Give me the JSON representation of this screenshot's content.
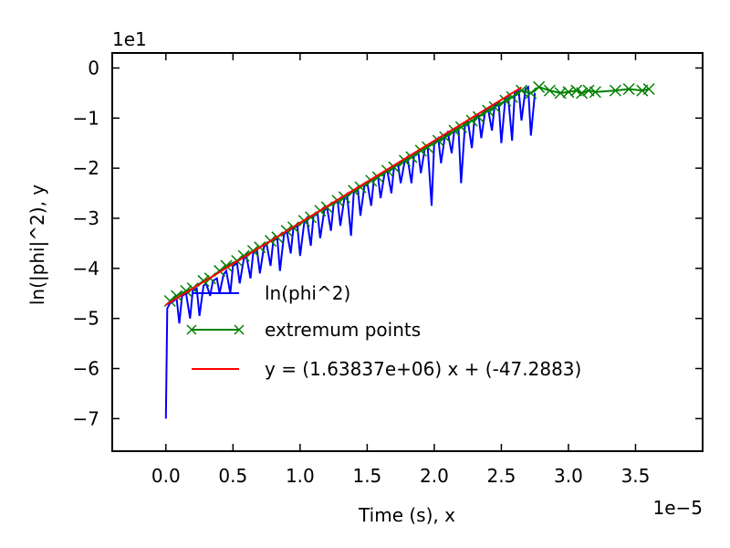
{
  "chart_data": {
    "type": "line",
    "xlabel": "Time (s), x",
    "ylabel": "ln(|phi|^2), y",
    "x_offset_label": "1e−5",
    "y_offset_label": "1e1",
    "xlim": [
      -0.4,
      4.0
    ],
    "ylim": [
      -7.65,
      0.3
    ],
    "x_ticks": [
      0.0,
      0.5,
      1.0,
      1.5,
      2.0,
      2.5,
      3.0,
      3.5
    ],
    "x_tick_labels": [
      "0.0",
      "0.5",
      "1.0",
      "1.5",
      "2.0",
      "2.5",
      "3.0",
      "3.5"
    ],
    "y_ticks": [
      0,
      -1,
      -2,
      -3,
      -4,
      -5,
      -6,
      -7
    ],
    "y_tick_labels": [
      "0",
      "−1",
      "−2",
      "−3",
      "−4",
      "−5",
      "−6",
      "−7"
    ],
    "grid": false,
    "legend_position": "lower-right",
    "series": [
      {
        "name": "ln(phi^2)",
        "color": "#0000ff",
        "marker": "none",
        "x": [
          0.0,
          0.01,
          0.03,
          0.06,
          0.08,
          0.1,
          0.12,
          0.15,
          0.18,
          0.2,
          0.23,
          0.25,
          0.28,
          0.3,
          0.33,
          0.35,
          0.38,
          0.4,
          0.43,
          0.45,
          0.48,
          0.5,
          0.53,
          0.55,
          0.58,
          0.6,
          0.63,
          0.65,
          0.68,
          0.7,
          0.73,
          0.75,
          0.78,
          0.8,
          0.83,
          0.85,
          0.88,
          0.9,
          0.93,
          0.95,
          0.98,
          1.0,
          1.03,
          1.05,
          1.08,
          1.1,
          1.13,
          1.15,
          1.18,
          1.2,
          1.23,
          1.25,
          1.28,
          1.3,
          1.33,
          1.35,
          1.38,
          1.4,
          1.43,
          1.45,
          1.48,
          1.5,
          1.53,
          1.55,
          1.58,
          1.6,
          1.63,
          1.65,
          1.68,
          1.7,
          1.73,
          1.75,
          1.78,
          1.8,
          1.83,
          1.85,
          1.88,
          1.9,
          1.93,
          1.95,
          1.98,
          2.0,
          2.03,
          2.05,
          2.08,
          2.1,
          2.13,
          2.15,
          2.18,
          2.2,
          2.23,
          2.25,
          2.28,
          2.3,
          2.33,
          2.35,
          2.38,
          2.4,
          2.43,
          2.45,
          2.48,
          2.5,
          2.53,
          2.55,
          2.58,
          2.6,
          2.63,
          2.65,
          2.68,
          2.7,
          2.72,
          2.75
        ],
        "y": [
          -7.0,
          -4.8,
          -4.7,
          -4.65,
          -4.6,
          -5.1,
          -4.55,
          -4.5,
          -5.0,
          -4.45,
          -4.4,
          -4.95,
          -4.35,
          -4.3,
          -4.55,
          -4.25,
          -4.2,
          -4.5,
          -4.12,
          -4.05,
          -4.5,
          -3.95,
          -3.9,
          -4.3,
          -3.82,
          -3.75,
          -4.2,
          -3.7,
          -3.65,
          -4.1,
          -3.58,
          -3.5,
          -3.95,
          -3.45,
          -3.4,
          -4.05,
          -3.33,
          -3.25,
          -3.7,
          -3.2,
          -3.15,
          -3.75,
          -3.1,
          -3.0,
          -3.55,
          -2.95,
          -2.9,
          -3.4,
          -2.85,
          -2.78,
          -3.25,
          -2.72,
          -2.65,
          -3.15,
          -2.6,
          -2.52,
          -3.35,
          -2.48,
          -2.4,
          -2.95,
          -2.35,
          -2.28,
          -2.75,
          -2.22,
          -2.15,
          -2.6,
          -2.1,
          -2.05,
          -2.5,
          -1.98,
          -1.92,
          -2.3,
          -1.85,
          -1.78,
          -2.3,
          -1.72,
          -1.65,
          -2.1,
          -1.6,
          -1.55,
          -2.75,
          -1.48,
          -1.4,
          -1.9,
          -1.35,
          -1.28,
          -1.7,
          -1.22,
          -1.18,
          -2.3,
          -1.1,
          -1.05,
          -1.6,
          -1.0,
          -0.92,
          -1.4,
          -0.85,
          -0.8,
          -1.25,
          -0.74,
          -0.68,
          -1.5,
          -0.6,
          -0.55,
          -1.45,
          -0.5,
          -0.45,
          -1.05,
          -0.42,
          -0.38,
          -1.35,
          -0.5
        ]
      },
      {
        "name": "extremum points",
        "color": "#008000",
        "marker": "x",
        "x": [
          0.03,
          0.08,
          0.15,
          0.2,
          0.28,
          0.33,
          0.4,
          0.45,
          0.53,
          0.58,
          0.65,
          0.7,
          0.78,
          0.83,
          0.9,
          0.95,
          1.03,
          1.08,
          1.15,
          1.2,
          1.28,
          1.33,
          1.4,
          1.45,
          1.53,
          1.58,
          1.65,
          1.7,
          1.78,
          1.83,
          1.9,
          1.95,
          2.03,
          2.08,
          2.15,
          2.2,
          2.28,
          2.33,
          2.4,
          2.45,
          2.53,
          2.58,
          2.65,
          2.72,
          2.78,
          2.86,
          2.94,
          3.0,
          3.06,
          3.1,
          3.15,
          3.2,
          3.35,
          3.45,
          3.55,
          3.6
        ],
        "y": [
          -4.65,
          -4.55,
          -4.45,
          -4.4,
          -4.25,
          -4.2,
          -4.05,
          -3.95,
          -3.85,
          -3.75,
          -3.65,
          -3.58,
          -3.45,
          -3.38,
          -3.25,
          -3.18,
          -3.05,
          -2.98,
          -2.85,
          -2.78,
          -2.65,
          -2.58,
          -2.45,
          -2.38,
          -2.25,
          -2.18,
          -2.05,
          -1.98,
          -1.85,
          -1.78,
          -1.65,
          -1.58,
          -1.45,
          -1.38,
          -1.25,
          -1.18,
          -1.05,
          -0.98,
          -0.85,
          -0.78,
          -0.65,
          -0.58,
          -0.45,
          -0.5,
          -0.38,
          -0.45,
          -0.5,
          -0.48,
          -0.45,
          -0.5,
          -0.45,
          -0.48,
          -0.45,
          -0.42,
          -0.45,
          -0.42
        ]
      },
      {
        "name": "y = (1.63837e+06) x + (-47.2883)",
        "color": "#ff0000",
        "marker": "none",
        "x": [
          0.0,
          2.65
        ],
        "y": [
          -4.72883,
          -0.3873
        ]
      }
    ]
  }
}
